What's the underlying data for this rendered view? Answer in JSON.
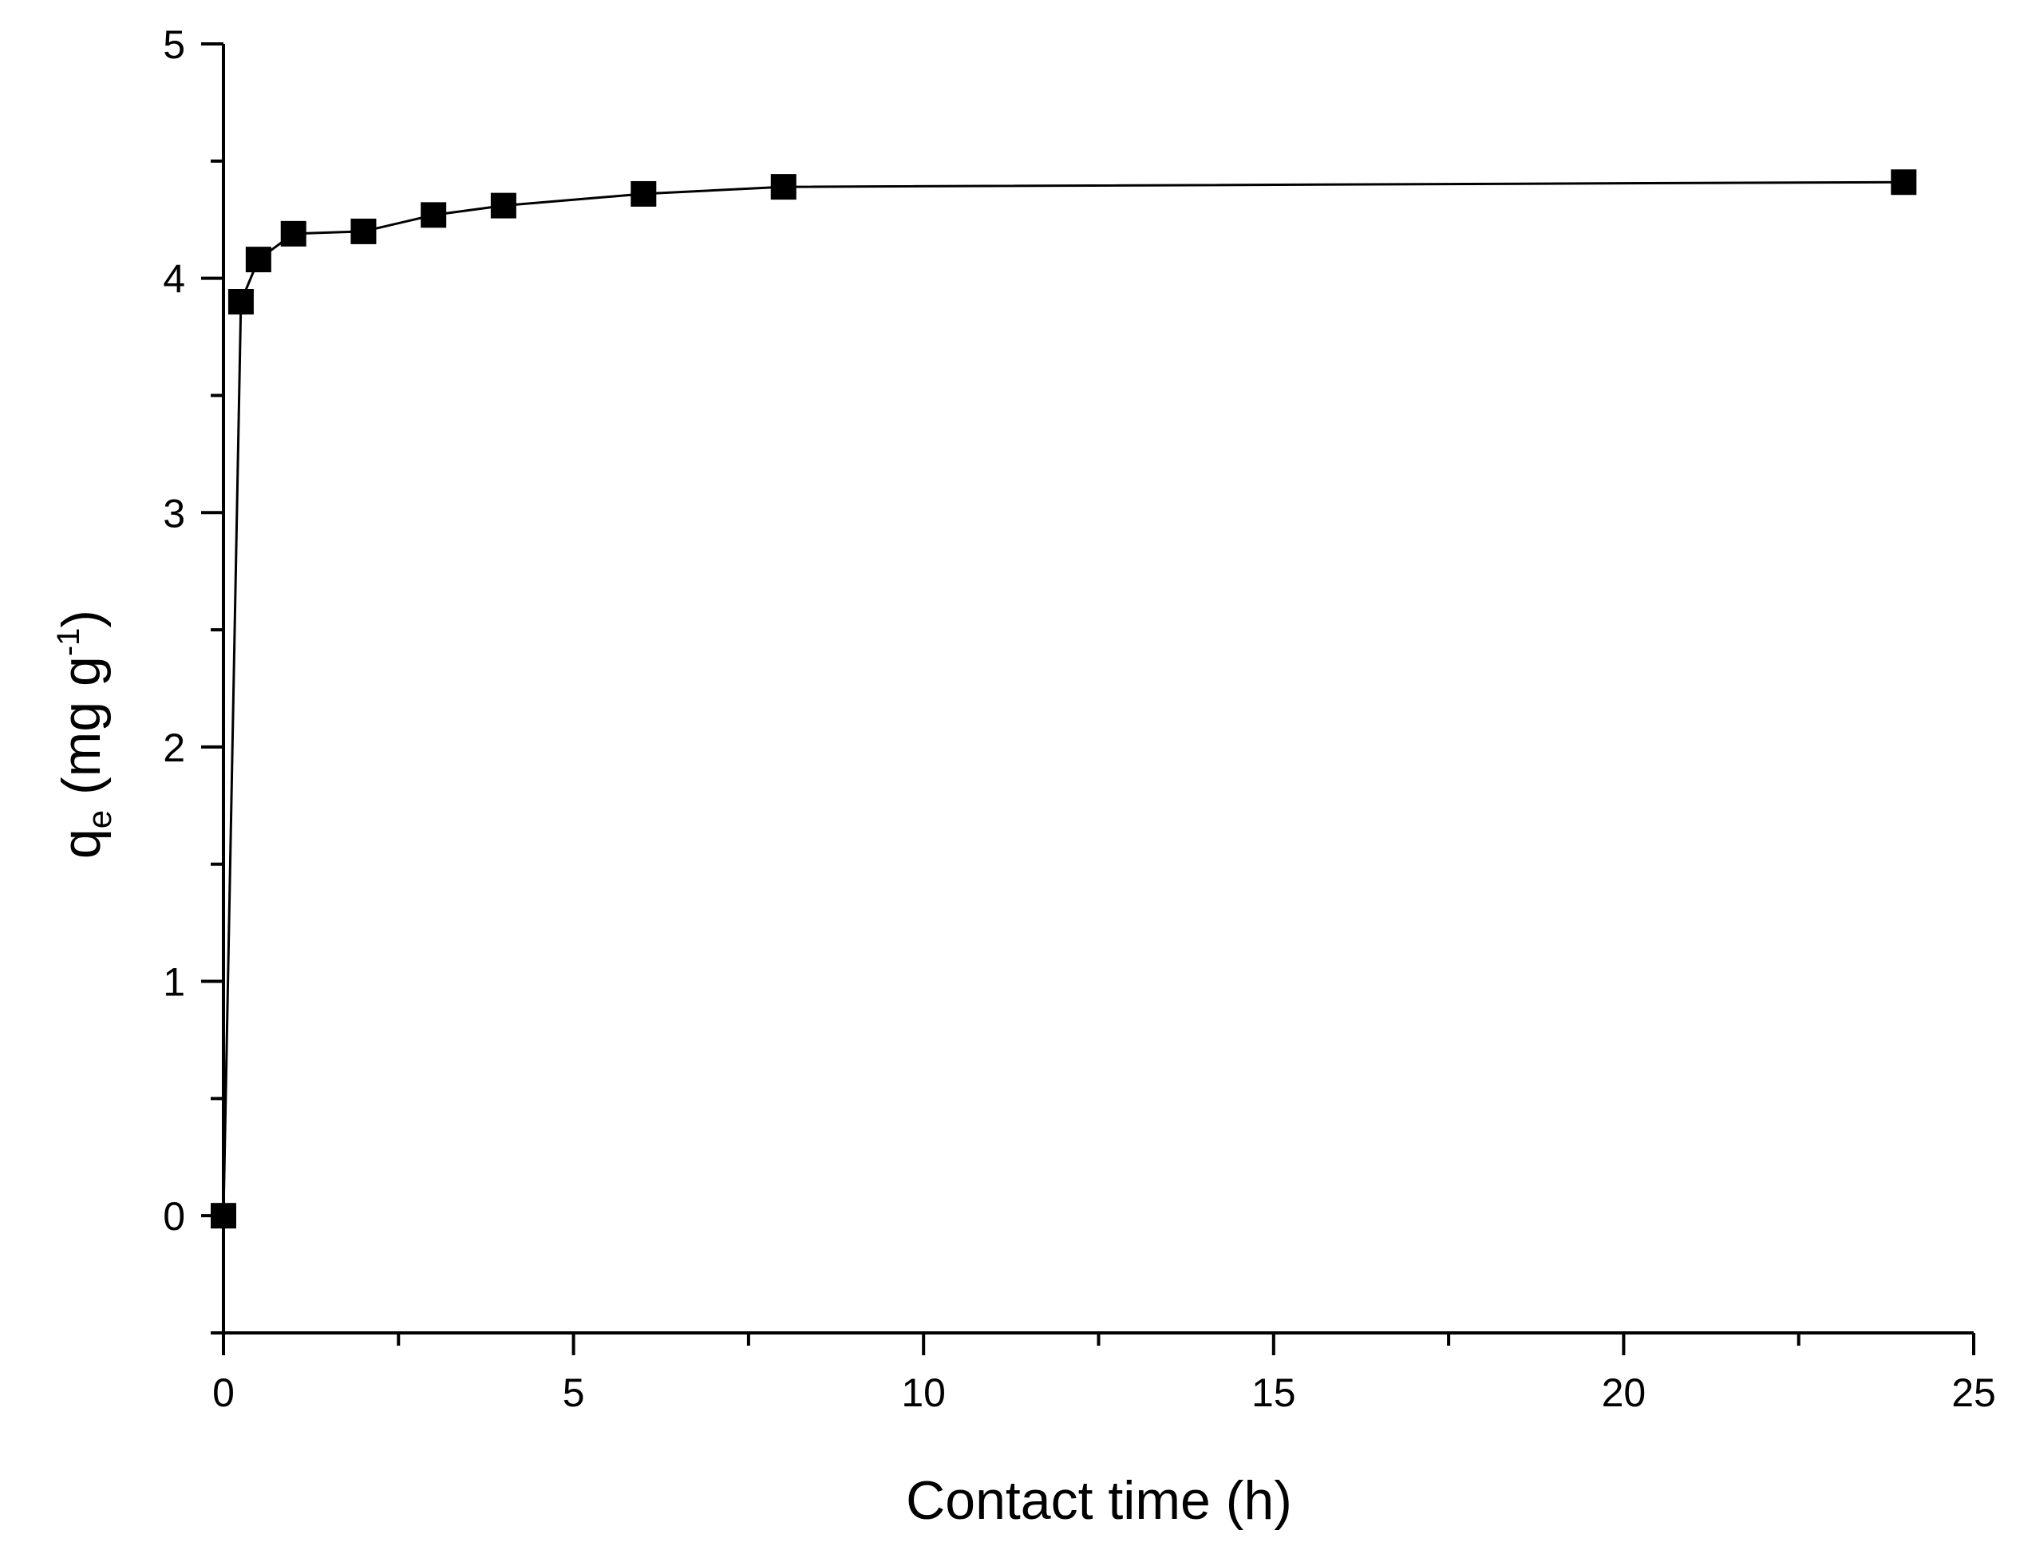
{
  "chart_data": {
    "type": "line",
    "title": "",
    "xlabel": "Contact time (h)",
    "ylabel": {
      "base": "q",
      "subscript": "e",
      "unit_open": " (mg g",
      "superscript": "-1",
      "unit_close": ")"
    },
    "xlim": [
      0,
      25
    ],
    "ylim": [
      -0.5,
      5
    ],
    "x_ticks": [
      0,
      5,
      10,
      15,
      20,
      25
    ],
    "y_ticks": [
      0,
      1,
      2,
      3,
      4,
      5
    ],
    "x_minor_step": 2.5,
    "y_minor_step": 0.5,
    "grid": false,
    "legend": "none",
    "marker": "square",
    "color": "#000000",
    "series": [
      {
        "x": [
          0,
          0.25,
          0.5,
          1,
          2,
          3,
          4,
          6,
          8,
          24
        ],
        "values": [
          0,
          3.9,
          4.08,
          4.19,
          4.2,
          4.27,
          4.31,
          4.36,
          4.39,
          4.41
        ]
      }
    ]
  }
}
